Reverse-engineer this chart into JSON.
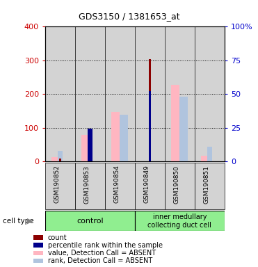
{
  "title": "GDS3150 / 1381653_at",
  "samples": [
    "GSM190852",
    "GSM190853",
    "GSM190854",
    "GSM190849",
    "GSM190850",
    "GSM190851"
  ],
  "value_absent": [
    13,
    80,
    148,
    0,
    227,
    17
  ],
  "rank_absent": [
    0,
    0,
    138,
    0,
    192,
    0
  ],
  "rank_absent_squares": [
    32,
    0,
    0,
    0,
    0,
    44
  ],
  "count": [
    8,
    0,
    0,
    303,
    0,
    0
  ],
  "percentile": [
    0,
    0,
    0,
    210,
    0,
    0
  ],
  "percentile_squares": [
    0,
    98,
    0,
    0,
    0,
    0
  ],
  "ylim_left": [
    0,
    400
  ],
  "ylim_right": [
    0,
    100
  ],
  "yticks_left": [
    0,
    100,
    200,
    300,
    400
  ],
  "yticks_right": [
    0,
    25,
    50,
    75,
    100
  ],
  "yticklabels_right": [
    "0",
    "25",
    "50",
    "75",
    "100%"
  ],
  "color_count": "#8b0000",
  "color_percentile": "#00008b",
  "color_value_absent": "#ffb6c1",
  "color_rank_absent": "#b0c4de",
  "color_left_axis": "#cc0000",
  "color_right_axis": "#0000cc",
  "col_bg": "#d3d3d3",
  "group_color": "#90ee90",
  "legend_items": [
    [
      "#8b0000",
      "count"
    ],
    [
      "#00008b",
      "percentile rank within the sample"
    ],
    [
      "#ffb6c1",
      "value, Detection Call = ABSENT"
    ],
    [
      "#b0c4de",
      "rank, Detection Call = ABSENT"
    ]
  ],
  "control_label": "control",
  "inner_label": "inner medullary\ncollecting duct cell",
  "cell_type_label": "cell type"
}
